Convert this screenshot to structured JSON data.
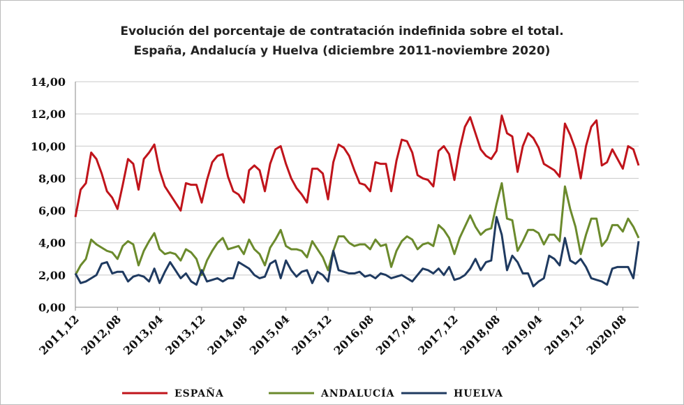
{
  "chart_data": {
    "type": "line",
    "title": "Evolución del porcentaje de contratación indefinida sobre el total.",
    "subtitle": "España, Andalucía y Huelva (diciembre 2011-noviembre 2020)",
    "categories": [
      "2011,12",
      null,
      null,
      null,
      null,
      null,
      null,
      null,
      "2012,08",
      null,
      null,
      null,
      null,
      null,
      null,
      null,
      "2013,04",
      null,
      null,
      null,
      null,
      null,
      null,
      null,
      "2013,12",
      null,
      null,
      null,
      null,
      null,
      null,
      null,
      "2014,08",
      null,
      null,
      null,
      null,
      null,
      null,
      null,
      "2015,04",
      null,
      null,
      null,
      null,
      null,
      null,
      null,
      "2015,12",
      null,
      null,
      null,
      null,
      null,
      null,
      null,
      "2016,08",
      null,
      null,
      null,
      null,
      null,
      null,
      null,
      "2017,04",
      null,
      null,
      null,
      null,
      null,
      null,
      null,
      "2017,12",
      null,
      null,
      null,
      null,
      null,
      null,
      null,
      "2018,08",
      null,
      null,
      null,
      null,
      null,
      null,
      null,
      "2019,04",
      null,
      null,
      null,
      null,
      null,
      null,
      null,
      "2019,12",
      null,
      null,
      null,
      null,
      null,
      null,
      null,
      "2020,08",
      null,
      null,
      null
    ],
    "series": [
      {
        "name": "ESPAÑA",
        "color": "#c0141b",
        "values": [
          5.6,
          7.3,
          7.7,
          9.6,
          9.2,
          8.3,
          7.2,
          6.8,
          6.1,
          7.6,
          9.2,
          8.9,
          7.3,
          9.2,
          9.6,
          10.1,
          8.5,
          7.5,
          7.0,
          6.5,
          6.0,
          7.7,
          7.6,
          7.6,
          6.5,
          7.9,
          9.0,
          9.4,
          9.5,
          8.1,
          7.2,
          7.0,
          6.5,
          8.5,
          8.8,
          8.5,
          7.2,
          8.9,
          9.8,
          10.0,
          8.9,
          8.0,
          7.4,
          7.0,
          6.5,
          8.6,
          8.6,
          8.3,
          6.7,
          9.0,
          10.1,
          9.9,
          9.4,
          8.5,
          7.7,
          7.6,
          7.2,
          9.0,
          8.9,
          8.9,
          7.2,
          9.1,
          10.4,
          10.3,
          9.6,
          8.2,
          8.0,
          7.9,
          7.5,
          9.7,
          10.0,
          9.5,
          7.9,
          9.8,
          11.2,
          11.8,
          10.8,
          9.8,
          9.4,
          9.2,
          9.7,
          11.9,
          10.8,
          10.6,
          8.4,
          10.0,
          10.8,
          10.5,
          9.9,
          8.9,
          8.7,
          8.5,
          8.1,
          11.4,
          10.7,
          9.8,
          8.0,
          10.0,
          11.2,
          11.6,
          8.8,
          9.0,
          9.8,
          9.2,
          8.6,
          10.0,
          9.8,
          8.8
        ]
      },
      {
        "name": "ANDALUCÍA",
        "color": "#6b8a2c",
        "values": [
          2.0,
          2.6,
          3.0,
          4.2,
          3.9,
          3.7,
          3.5,
          3.4,
          3.0,
          3.8,
          4.1,
          3.9,
          2.6,
          3.5,
          4.1,
          4.6,
          3.6,
          3.3,
          3.4,
          3.3,
          2.9,
          3.6,
          3.4,
          3.0,
          2.0,
          2.9,
          3.5,
          4.0,
          4.3,
          3.6,
          3.7,
          3.8,
          3.3,
          4.2,
          3.6,
          3.3,
          2.6,
          3.7,
          4.2,
          4.8,
          3.8,
          3.6,
          3.6,
          3.5,
          3.1,
          4.1,
          3.6,
          3.1,
          2.3,
          3.5,
          4.4,
          4.4,
          4.0,
          3.8,
          3.9,
          3.9,
          3.6,
          4.2,
          3.8,
          3.9,
          2.5,
          3.5,
          4.1,
          4.4,
          4.2,
          3.6,
          3.9,
          4.0,
          3.8,
          5.1,
          4.8,
          4.3,
          3.3,
          4.3,
          5.0,
          5.7,
          5.0,
          4.5,
          4.8,
          4.9,
          6.4,
          7.7,
          5.5,
          5.4,
          3.5,
          4.1,
          4.8,
          4.8,
          4.6,
          3.9,
          4.5,
          4.5,
          4.1,
          7.5,
          6.1,
          5.0,
          3.3,
          4.5,
          5.5,
          5.5,
          3.8,
          4.2,
          5.1,
          5.1,
          4.7,
          5.5,
          5.0,
          4.3
        ]
      },
      {
        "name": "HUELVA",
        "color": "#1f3a60",
        "values": [
          2.1,
          1.5,
          1.6,
          1.8,
          2.0,
          2.7,
          2.8,
          2.1,
          2.2,
          2.2,
          1.6,
          1.9,
          2.0,
          1.9,
          1.6,
          2.4,
          1.5,
          2.2,
          2.8,
          2.3,
          1.8,
          2.1,
          1.6,
          1.4,
          2.3,
          1.6,
          1.7,
          1.8,
          1.6,
          1.8,
          1.8,
          2.8,
          2.6,
          2.4,
          2.0,
          1.8,
          1.9,
          2.7,
          2.9,
          1.8,
          2.9,
          2.3,
          1.9,
          2.2,
          2.3,
          1.5,
          2.2,
          2.0,
          1.6,
          3.5,
          2.3,
          2.2,
          2.1,
          2.1,
          2.2,
          1.9,
          2.0,
          1.8,
          2.1,
          2.0,
          1.8,
          1.9,
          2.0,
          1.8,
          1.6,
          2.0,
          2.4,
          2.3,
          2.1,
          2.4,
          2.0,
          2.5,
          1.7,
          1.8,
          2.0,
          2.4,
          3.0,
          2.3,
          2.8,
          2.9,
          5.6,
          4.5,
          2.3,
          3.2,
          2.8,
          2.1,
          2.1,
          1.3,
          1.6,
          1.8,
          3.2,
          3.0,
          2.6,
          4.3,
          2.9,
          2.7,
          3.0,
          2.5,
          1.8,
          1.7,
          1.6,
          1.4,
          2.4,
          2.5,
          2.5,
          2.5,
          1.8,
          4.1
        ]
      }
    ],
    "ylim": [
      0,
      14
    ],
    "yticks": [
      {
        "value": 0,
        "label": "0,00"
      },
      {
        "value": 2,
        "label": "2,00"
      },
      {
        "value": 4,
        "label": "4,00"
      },
      {
        "value": 6,
        "label": "6,00"
      },
      {
        "value": 8,
        "label": "8,00"
      },
      {
        "value": 10,
        "label": "10,00"
      },
      {
        "value": 12,
        "label": "12,00"
      },
      {
        "value": 14,
        "label": "14,00"
      }
    ],
    "grid": true,
    "legend": "bottom"
  }
}
